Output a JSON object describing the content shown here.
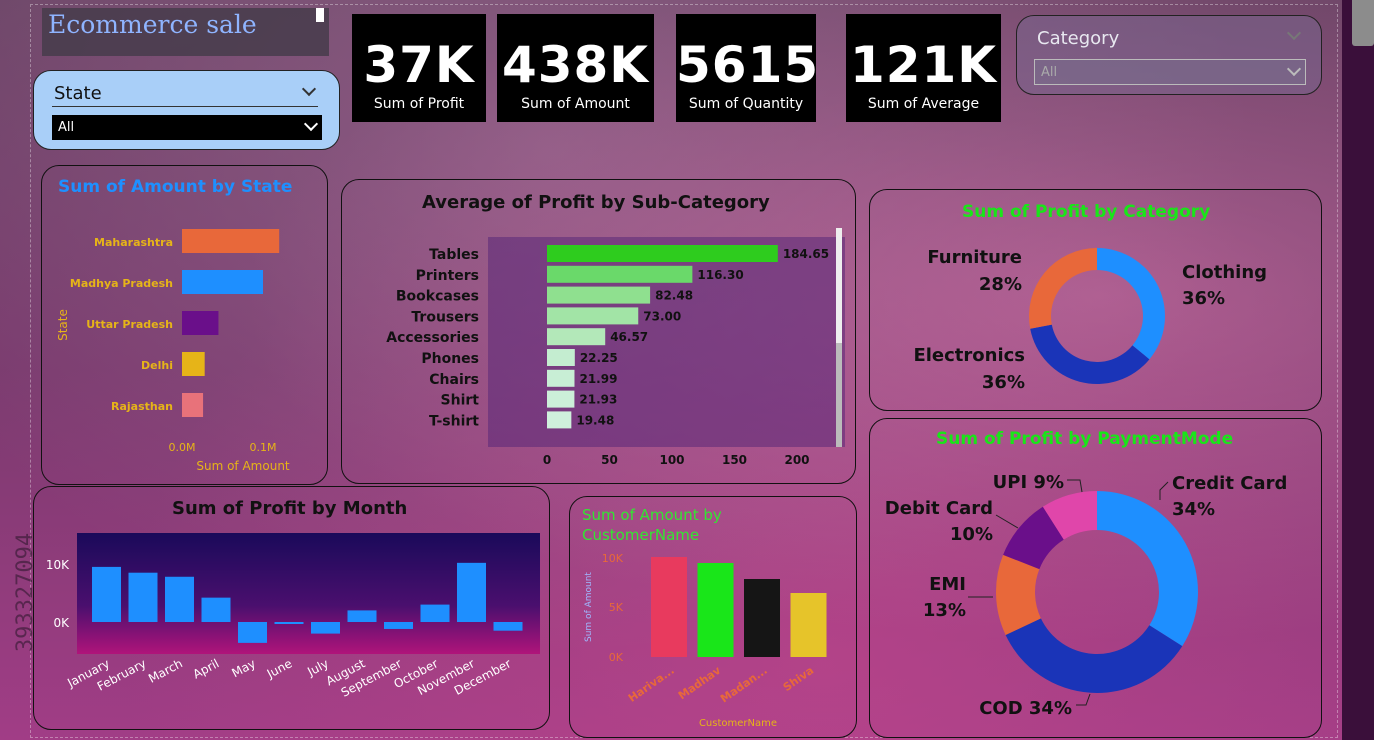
{
  "report": {
    "title": "Ecommerce sale"
  },
  "slicers": {
    "state": {
      "label": "State",
      "value": "All"
    },
    "category": {
      "label": "Category",
      "value": "All"
    }
  },
  "kpis": [
    {
      "value": "37K",
      "label": "Sum of Profit"
    },
    {
      "value": "438K",
      "label": "Sum of Amount"
    },
    {
      "value": "5615",
      "label": "Sum of Quantity"
    },
    {
      "value": "121K",
      "label": "Sum of Average"
    }
  ],
  "watermark": {
    "text": "393327094"
  },
  "colors": {
    "state_title": "#1e90ff",
    "category_title": "#19e619",
    "customer_title": "#32e632"
  },
  "chart_data": [
    {
      "id": "amount_by_state",
      "type": "bar",
      "orientation": "horizontal",
      "title": "Sum of Amount by State",
      "xlabel": "Sum of Amount",
      "ylabel": "State",
      "categories": [
        "Maharashtra",
        "Madhya Pradesh",
        "Uttar Pradesh",
        "Delhi",
        "Rajasthan"
      ],
      "values": [
        0.12,
        0.1,
        0.045,
        0.028,
        0.026
      ],
      "value_unit": "M",
      "colors": [
        "#e8683a",
        "#1e8fff",
        "#6a0f8a",
        "#e6b418",
        "#e8727a"
      ],
      "xticks": [
        "0.0M",
        "0.1M"
      ],
      "xlim": [
        0,
        0.15
      ]
    },
    {
      "id": "profit_by_subcategory",
      "type": "bar",
      "orientation": "horizontal",
      "title": "Average of Profit by Sub-Category",
      "categories": [
        "Tables",
        "Printers",
        "Bookcases",
        "Trousers",
        "Accessories",
        "Phones",
        "Chairs",
        "Shirt",
        "T-shirt"
      ],
      "values": [
        184.65,
        116.3,
        82.48,
        73.0,
        46.57,
        22.25,
        21.99,
        21.93,
        19.48
      ],
      "labels": [
        "184.65",
        "116.30",
        "82.48",
        "73.00",
        "46.57",
        "22.25",
        "21.99",
        "21.93",
        "19.48"
      ],
      "xticks": [
        "0",
        "50",
        "100",
        "150",
        "200"
      ],
      "xlim": [
        0,
        200
      ]
    },
    {
      "id": "profit_by_category",
      "type": "pie",
      "donut": true,
      "title": "Sum of Profit by Category",
      "slices": [
        {
          "name": "Clothing",
          "pct": "36%",
          "value": 36,
          "color": "#1e8fff"
        },
        {
          "name": "Electronics",
          "pct": "36%",
          "value": 36,
          "color": "#1a34b8"
        },
        {
          "name": "Furniture",
          "pct": "28%",
          "value": 28,
          "color": "#e8683a"
        }
      ]
    },
    {
      "id": "profit_by_paymentmode",
      "type": "pie",
      "donut": true,
      "title": "Sum of Profit by PaymentMode",
      "slices": [
        {
          "name": "Credit Card",
          "pct": "34%",
          "value": 34,
          "color": "#1e8fff"
        },
        {
          "name": "COD",
          "pct": "34%",
          "value": 34,
          "color": "#1a34b8"
        },
        {
          "name": "EMI",
          "pct": "13%",
          "value": 13,
          "color": "#e8683a"
        },
        {
          "name": "Debit Card",
          "pct": "10%",
          "value": 10,
          "color": "#6a0f8a"
        },
        {
          "name": "UPI",
          "pct": "9%",
          "value": 9,
          "color": "#e046aa"
        }
      ]
    },
    {
      "id": "profit_by_month",
      "type": "bar",
      "title": "Sum of Profit by Month",
      "categories": [
        "January",
        "February",
        "March",
        "April",
        "May",
        "June",
        "July",
        "August",
        "September",
        "October",
        "November",
        "December"
      ],
      "values": [
        9500,
        8500,
        7800,
        4200,
        -3600,
        -300,
        -2000,
        2000,
        -1200,
        3000,
        10200,
        -1500
      ],
      "yticks": [
        "10K",
        "0K"
      ],
      "ylim": [
        -6000,
        14000
      ],
      "color": "#1e8fff"
    },
    {
      "id": "amount_by_customer",
      "type": "bar",
      "title": "Sum of Amount by CustomerName",
      "xlabel": "CustomerName",
      "ylabel": "Sum of Amount",
      "categories": [
        "Hariva...",
        "Madhav",
        "Madan...",
        "Shiva"
      ],
      "values": [
        10000,
        9400,
        7800,
        6400
      ],
      "colors": [
        "#e83a5e",
        "#19e619",
        "#151515",
        "#e6c42a"
      ],
      "yticks": [
        "10K",
        "5K",
        "0K"
      ],
      "ylim": [
        0,
        10000
      ]
    }
  ]
}
